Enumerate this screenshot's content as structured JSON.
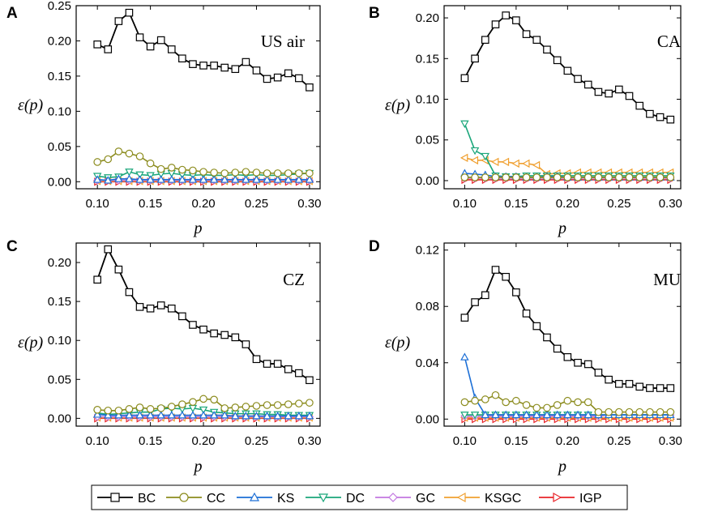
{
  "chart_data": [
    {
      "type": "line",
      "panel_letter": "A",
      "title": "US air",
      "xlabel": "p",
      "ylabel": "ε(p)",
      "xlim": [
        0.08,
        0.31
      ],
      "ylim": [
        -0.01,
        0.25
      ],
      "xticks": [
        "0.10",
        "0.15",
        "0.20",
        "0.25",
        "0.30"
      ],
      "yticks": [
        "0.00",
        "0.05",
        "0.10",
        "0.15",
        "0.20",
        "0.25"
      ],
      "x": [
        0.1,
        0.11,
        0.12,
        0.13,
        0.14,
        0.15,
        0.16,
        0.17,
        0.18,
        0.19,
        0.2,
        0.21,
        0.22,
        0.23,
        0.24,
        0.25,
        0.26,
        0.27,
        0.28,
        0.29,
        0.3
      ],
      "series": [
        {
          "name": "BC",
          "values": [
            0.195,
            0.188,
            0.228,
            0.24,
            0.205,
            0.192,
            0.201,
            0.188,
            0.175,
            0.167,
            0.165,
            0.165,
            0.162,
            0.16,
            0.17,
            0.158,
            0.146,
            0.148,
            0.154,
            0.147,
            0.134
          ]
        },
        {
          "name": "CC",
          "values": [
            0.028,
            0.032,
            0.043,
            0.04,
            0.036,
            0.026,
            0.018,
            0.02,
            0.017,
            0.016,
            0.014,
            0.013,
            0.012,
            0.013,
            0.014,
            0.013,
            0.012,
            0.012,
            0.012,
            0.012,
            0.012
          ]
        },
        {
          "name": "KS",
          "values": [
            0.003,
            0.002,
            0.004,
            0.004,
            0.003,
            0.003,
            0.003,
            0.003,
            0.003,
            0.003,
            0.003,
            0.003,
            0.003,
            0.003,
            0.003,
            0.003,
            0.003,
            0.003,
            0.003,
            0.003,
            0.003
          ]
        },
        {
          "name": "DC",
          "values": [
            0.008,
            0.006,
            0.007,
            0.014,
            0.01,
            0.009,
            0.011,
            0.012,
            0.01,
            0.009,
            0.01,
            0.009,
            0.009,
            0.01,
            0.009,
            0.01,
            0.009,
            0.009,
            0.01,
            0.011,
            0.012
          ]
        },
        {
          "name": "GC",
          "values": [
            0.002,
            0.002,
            0.002,
            0.002,
            0.002,
            0.002,
            0.002,
            0.002,
            0.002,
            0.002,
            0.002,
            0.002,
            0.002,
            0.002,
            0.002,
            0.002,
            0.002,
            0.002,
            0.002,
            0.002,
            0.002
          ]
        },
        {
          "name": "KSGC",
          "values": [
            0.001,
            0.001,
            0.001,
            0.001,
            0.001,
            0.001,
            0.001,
            0.001,
            0.001,
            0.001,
            0.001,
            0.001,
            0.001,
            0.001,
            0.001,
            0.001,
            0.001,
            0.001,
            0.001,
            0.001,
            0.001
          ]
        },
        {
          "name": "IGP",
          "values": [
            0.0,
            0.0,
            0.0,
            0.0,
            0.0,
            0.0,
            0.0,
            0.0,
            0.0,
            0.0,
            0.0,
            0.0,
            0.0,
            0.0,
            0.0,
            0.0,
            0.0,
            0.0,
            0.0,
            0.0,
            0.0
          ]
        }
      ]
    },
    {
      "type": "line",
      "panel_letter": "B",
      "title": "CA",
      "xlabel": "p",
      "ylabel": "ε(p)",
      "xlim": [
        0.08,
        0.31
      ],
      "ylim": [
        -0.01,
        0.215
      ],
      "xticks": [
        "0.10",
        "0.15",
        "0.20",
        "0.25",
        "0.30"
      ],
      "yticks": [
        "0.00",
        "0.05",
        "0.10",
        "0.15",
        "0.20"
      ],
      "x": [
        0.1,
        0.11,
        0.12,
        0.13,
        0.14,
        0.15,
        0.16,
        0.17,
        0.18,
        0.19,
        0.2,
        0.21,
        0.22,
        0.23,
        0.24,
        0.25,
        0.26,
        0.27,
        0.28,
        0.29,
        0.3
      ],
      "series": [
        {
          "name": "BC",
          "values": [
            0.126,
            0.15,
            0.173,
            0.192,
            0.203,
            0.197,
            0.18,
            0.173,
            0.161,
            0.148,
            0.135,
            0.125,
            0.118,
            0.109,
            0.107,
            0.112,
            0.104,
            0.092,
            0.082,
            0.078,
            0.075
          ]
        },
        {
          "name": "CC",
          "values": [
            0.004,
            0.004,
            0.004,
            0.004,
            0.004,
            0.004,
            0.004,
            0.004,
            0.004,
            0.004,
            0.004,
            0.004,
            0.004,
            0.004,
            0.004,
            0.004,
            0.004,
            0.004,
            0.004,
            0.004,
            0.004
          ]
        },
        {
          "name": "KS",
          "values": [
            0.009,
            0.008,
            0.007,
            0.005,
            0.005,
            0.005,
            0.004,
            0.004,
            0.005,
            0.005,
            0.004,
            0.004,
            0.004,
            0.004,
            0.004,
            0.004,
            0.004,
            0.004,
            0.004,
            0.004,
            0.004
          ]
        },
        {
          "name": "DC",
          "values": [
            0.07,
            0.037,
            0.03,
            0.006,
            0.005,
            0.005,
            0.006,
            0.006,
            0.006,
            0.006,
            0.006,
            0.006,
            0.006,
            0.006,
            0.006,
            0.006,
            0.006,
            0.006,
            0.006,
            0.006,
            0.006
          ]
        },
        {
          "name": "GC",
          "values": [
            0.003,
            0.003,
            0.003,
            0.003,
            0.003,
            0.003,
            0.003,
            0.003,
            0.003,
            0.003,
            0.003,
            0.003,
            0.003,
            0.003,
            0.003,
            0.003,
            0.003,
            0.003,
            0.003,
            0.003,
            0.003
          ]
        },
        {
          "name": "KSGC",
          "values": [
            0.028,
            0.025,
            0.025,
            0.023,
            0.023,
            0.021,
            0.021,
            0.019,
            0.008,
            0.009,
            0.009,
            0.01,
            0.01,
            0.01,
            0.01,
            0.01,
            0.01,
            0.01,
            0.01,
            0.01,
            0.01
          ]
        },
        {
          "name": "IGP",
          "values": [
            0.001,
            0.001,
            0.001,
            0.001,
            0.001,
            0.001,
            0.001,
            0.001,
            0.001,
            0.001,
            0.001,
            0.001,
            0.001,
            0.001,
            0.001,
            0.001,
            0.001,
            0.001,
            0.001,
            0.001,
            0.001
          ]
        }
      ]
    },
    {
      "type": "line",
      "panel_letter": "C",
      "title": "CZ",
      "xlabel": "p",
      "ylabel": "ε(p)",
      "xlim": [
        0.08,
        0.31
      ],
      "ylim": [
        -0.01,
        0.225
      ],
      "xticks": [
        "0.10",
        "0.15",
        "0.20",
        "0.25",
        "0.30"
      ],
      "yticks": [
        "0.00",
        "0.05",
        "0.10",
        "0.15",
        "0.20"
      ],
      "x": [
        0.1,
        0.11,
        0.12,
        0.13,
        0.14,
        0.15,
        0.16,
        0.17,
        0.18,
        0.19,
        0.2,
        0.21,
        0.22,
        0.23,
        0.24,
        0.25,
        0.26,
        0.27,
        0.28,
        0.29,
        0.3
      ],
      "series": [
        {
          "name": "BC",
          "values": [
            0.178,
            0.217,
            0.191,
            0.162,
            0.143,
            0.141,
            0.145,
            0.141,
            0.131,
            0.12,
            0.114,
            0.109,
            0.107,
            0.104,
            0.095,
            0.076,
            0.07,
            0.07,
            0.063,
            0.058,
            0.049
          ]
        },
        {
          "name": "CC",
          "values": [
            0.011,
            0.01,
            0.01,
            0.012,
            0.014,
            0.012,
            0.013,
            0.015,
            0.018,
            0.021,
            0.025,
            0.024,
            0.013,
            0.014,
            0.015,
            0.016,
            0.017,
            0.017,
            0.018,
            0.019,
            0.02
          ]
        },
        {
          "name": "KS",
          "values": [
            0.005,
            0.004,
            0.004,
            0.004,
            0.004,
            0.004,
            0.004,
            0.004,
            0.004,
            0.004,
            0.004,
            0.004,
            0.004,
            0.003,
            0.003,
            0.003,
            0.003,
            0.003,
            0.003,
            0.003,
            0.003
          ]
        },
        {
          "name": "DC",
          "values": [
            0.007,
            0.005,
            0.006,
            0.007,
            0.008,
            0.008,
            0.012,
            0.013,
            0.012,
            0.013,
            0.011,
            0.008,
            0.007,
            0.006,
            0.006,
            0.006,
            0.005,
            0.005,
            0.004,
            0.004,
            0.004
          ]
        },
        {
          "name": "GC",
          "values": [
            0.002,
            0.002,
            0.002,
            0.002,
            0.002,
            0.002,
            0.002,
            0.002,
            0.002,
            0.002,
            0.002,
            0.002,
            0.002,
            0.002,
            0.002,
            0.002,
            0.002,
            0.002,
            0.002,
            0.002,
            0.002
          ]
        },
        {
          "name": "KSGC",
          "values": [
            0.001,
            0.001,
            0.001,
            0.001,
            0.001,
            0.001,
            0.001,
            0.001,
            0.001,
            0.001,
            0.001,
            0.001,
            0.001,
            0.001,
            0.001,
            0.001,
            0.001,
            0.001,
            0.001,
            0.001,
            0.001
          ]
        },
        {
          "name": "IGP",
          "values": [
            0.0,
            0.0,
            0.0,
            0.0,
            0.0,
            0.0,
            0.0,
            0.0,
            0.0,
            0.0,
            0.0,
            0.0,
            0.0,
            0.0,
            0.0,
            0.0,
            0.0,
            0.0,
            0.0,
            0.0,
            0.0
          ]
        }
      ]
    },
    {
      "type": "line",
      "panel_letter": "D",
      "title": "MU",
      "xlabel": "p",
      "ylabel": "ε(p)",
      "xlim": [
        0.08,
        0.31
      ],
      "ylim": [
        -0.005,
        0.125
      ],
      "xticks": [
        "0.10",
        "0.15",
        "0.20",
        "0.25",
        "0.30"
      ],
      "yticks": [
        "0.00",
        "0.04",
        "0.08",
        "0.12"
      ],
      "x": [
        0.1,
        0.11,
        0.12,
        0.13,
        0.14,
        0.15,
        0.16,
        0.17,
        0.18,
        0.19,
        0.2,
        0.21,
        0.22,
        0.23,
        0.24,
        0.25,
        0.26,
        0.27,
        0.28,
        0.29,
        0.3
      ],
      "series": [
        {
          "name": "BC",
          "values": [
            0.072,
            0.083,
            0.088,
            0.106,
            0.101,
            0.09,
            0.075,
            0.066,
            0.058,
            0.05,
            0.044,
            0.04,
            0.039,
            0.033,
            0.028,
            0.025,
            0.025,
            0.023,
            0.022,
            0.022,
            0.022
          ]
        },
        {
          "name": "CC",
          "values": [
            0.012,
            0.013,
            0.014,
            0.017,
            0.012,
            0.013,
            0.01,
            0.008,
            0.008,
            0.01,
            0.013,
            0.012,
            0.012,
            0.005,
            0.005,
            0.005,
            0.005,
            0.005,
            0.005,
            0.005,
            0.005
          ]
        },
        {
          "name": "KS",
          "values": [
            0.044,
            0.015,
            0.003,
            0.003,
            0.003,
            0.003,
            0.003,
            0.003,
            0.003,
            0.003,
            0.003,
            0.003,
            0.003,
            0.003,
            0.003,
            0.003,
            0.003,
            0.003,
            0.003,
            0.003,
            0.003
          ]
        },
        {
          "name": "DC",
          "values": [
            0.003,
            0.003,
            0.003,
            0.003,
            0.003,
            0.003,
            0.003,
            0.003,
            0.003,
            0.003,
            0.003,
            0.003,
            0.003,
            0.003,
            0.003,
            0.003,
            0.003,
            0.003,
            0.003,
            0.003,
            0.003
          ]
        },
        {
          "name": "GC",
          "values": [
            0.002,
            0.002,
            0.002,
            0.002,
            0.002,
            0.002,
            0.002,
            0.002,
            0.002,
            0.002,
            0.002,
            0.002,
            0.002,
            0.002,
            0.003,
            0.003,
            0.003,
            0.003,
            0.003,
            0.003,
            0.003
          ]
        },
        {
          "name": "KSGC",
          "values": [
            0.001,
            0.001,
            0.001,
            0.001,
            0.001,
            0.001,
            0.001,
            0.001,
            0.001,
            0.001,
            0.001,
            0.001,
            0.001,
            0.001,
            0.001,
            0.001,
            0.001,
            0.001,
            0.001,
            0.001,
            0.001
          ]
        },
        {
          "name": "IGP",
          "values": [
            0.0,
            0.0,
            0.0,
            0.0,
            0.0,
            0.0,
            0.0,
            0.0,
            0.0,
            0.0,
            0.0,
            0.0,
            0.0,
            0.0,
            0.0,
            0.0,
            0.0,
            0.0,
            0.0,
            0.0,
            0.0
          ]
        }
      ]
    }
  ],
  "legend": {
    "placement": "bottom-center",
    "entries": [
      {
        "name": "BC",
        "color": "#000000",
        "marker": "square"
      },
      {
        "name": "CC",
        "color": "#8c8c1e",
        "marker": "circle"
      },
      {
        "name": "KS",
        "color": "#1c6fd6",
        "marker": "triangle-up"
      },
      {
        "name": "DC",
        "color": "#1aa67a",
        "marker": "triangle-down"
      },
      {
        "name": "GC",
        "color": "#c277e0",
        "marker": "diamond"
      },
      {
        "name": "KSGC",
        "color": "#f0a030",
        "marker": "triangle-left"
      },
      {
        "name": "IGP",
        "color": "#e8242a",
        "marker": "triangle-right"
      }
    ]
  }
}
